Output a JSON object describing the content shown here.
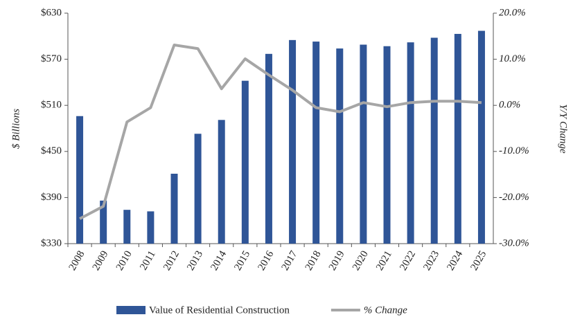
{
  "chart_data": {
    "type": "bar_line",
    "ylabel": "$ Billions",
    "y2label": "Y/Y Change",
    "categories": [
      "2008",
      "2009",
      "2010",
      "2011",
      "2012",
      "2013",
      "2014",
      "2015",
      "2016",
      "2017",
      "2018",
      "2019",
      "2020",
      "2021",
      "2022",
      "2023",
      "2024",
      "2025"
    ],
    "series": [
      {
        "name": "Value of Residential Construction",
        "type": "bar",
        "color": "#2f5597",
        "values": [
          496,
          386,
          374,
          372,
          421,
          473,
          491,
          542,
          577,
          595,
          593,
          584,
          589,
          587,
          592,
          598,
          603,
          607
        ]
      },
      {
        "name": "% Change",
        "type": "line",
        "axis": "y2",
        "color": "#a6a6a6",
        "values": [
          -24.6,
          -21.9,
          -3.6,
          -0.5,
          13.1,
          12.3,
          3.6,
          10.1,
          6.6,
          3.3,
          -0.5,
          -1.4,
          0.6,
          -0.3,
          0.6,
          0.9,
          0.9,
          0.6
        ]
      }
    ],
    "ylim": [
      330,
      630
    ],
    "yticks": [
      {
        "value": 330,
        "label": "$330"
      },
      {
        "value": 390,
        "label": "$390"
      },
      {
        "value": 450,
        "label": "$450"
      },
      {
        "value": 510,
        "label": "$510"
      },
      {
        "value": 570,
        "label": "$570"
      },
      {
        "value": 630,
        "label": "$630"
      }
    ],
    "y2lim": [
      -30,
      20
    ],
    "y2ticks": [
      {
        "value": -30,
        "label": "-30.0%"
      },
      {
        "value": -20,
        "label": "-20.0%"
      },
      {
        "value": -10,
        "label": "-10.0%"
      },
      {
        "value": 0,
        "label": "0.0%"
      },
      {
        "value": 10,
        "label": "10.0%"
      },
      {
        "value": 20,
        "label": "20.0%"
      }
    ],
    "legend": "bottom"
  }
}
